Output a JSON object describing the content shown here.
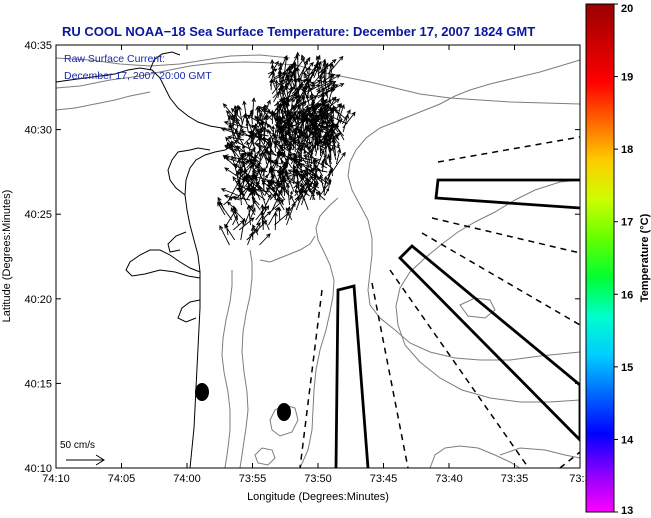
{
  "title": "RU COOL  NOAA−18  Sea Surface Temperature:  December 17, 2007 1824 GMT",
  "annotation": {
    "line1": "Raw Surface Current:",
    "line2": "December 17, 2007 20:00 GMT"
  },
  "axes": {
    "xlabel": "Longitude (Degrees:Minutes)",
    "ylabel": "Latitude (Degrees:Minutes)",
    "xticks": [
      "74:10",
      "74:05",
      "74:00",
      "73:55",
      "73:50",
      "73:45",
      "73:40",
      "73:35",
      "73:3"
    ],
    "yticks": [
      "40:35",
      "40:30",
      "40:25",
      "40:20",
      "40:15",
      "40:10"
    ]
  },
  "scale": {
    "label": "50 cm/s"
  },
  "colorbar": {
    "label": "Temperature (°C)",
    "ticks": [
      "20",
      "19",
      "18",
      "17",
      "16",
      "15",
      "14",
      "13"
    ],
    "colors": [
      "#ff00ff",
      "#8a00ff",
      "#0000ff",
      "#0066ff",
      "#00ccff",
      "#00ffcc",
      "#00ff33",
      "#66ff00",
      "#ccff00",
      "#ffcc00",
      "#ff6600",
      "#ff0000",
      "#cc0000",
      "#990000"
    ]
  },
  "map": {
    "contour_color": "#7d7d7d",
    "coast_color": "#000000"
  }
}
